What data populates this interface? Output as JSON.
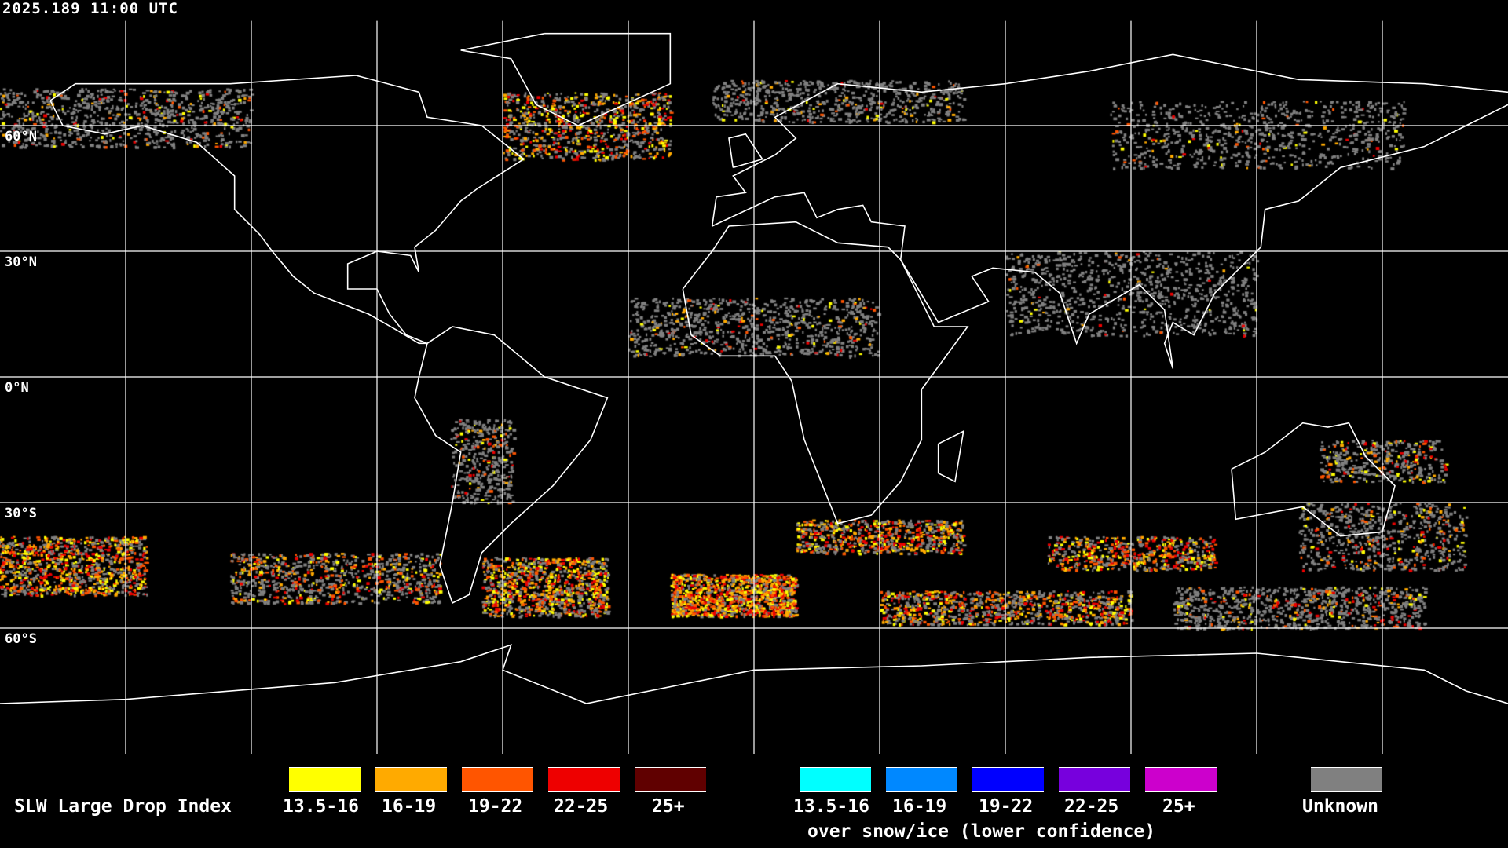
{
  "timestamp": "2025.189 11:00 UTC",
  "map": {
    "projection": "equirectangular",
    "grid_spacing_degrees": 30,
    "latitude_labels": [
      "60°N",
      "30°N",
      "0°N",
      "30°S",
      "60°S"
    ],
    "coastline_color": "#ffffff",
    "background_color": "#000000"
  },
  "legend": {
    "title": "SLW Large Drop Index",
    "categories": [
      {
        "label": "13.5-16",
        "color": "#ffff00"
      },
      {
        "label": "16-19",
        "color": "#ffaa00"
      },
      {
        "label": "19-22",
        "color": "#ff5500"
      },
      {
        "label": "22-25",
        "color": "#ee0000"
      },
      {
        "label": "25+",
        "color": "#600000"
      }
    ],
    "snow_ice_categories": [
      {
        "label": "13.5-16",
        "color": "#00ffff"
      },
      {
        "label": "16-19",
        "color": "#0088ff"
      },
      {
        "label": "19-22",
        "color": "#0000ff"
      },
      {
        "label": "22-25",
        "color": "#7700dd"
      },
      {
        "label": "25+",
        "color": "#cc00cc"
      }
    ],
    "snow_ice_caption": "over snow/ice (lower confidence)",
    "unknown": {
      "label": "Unknown",
      "color": "#808080"
    }
  }
}
